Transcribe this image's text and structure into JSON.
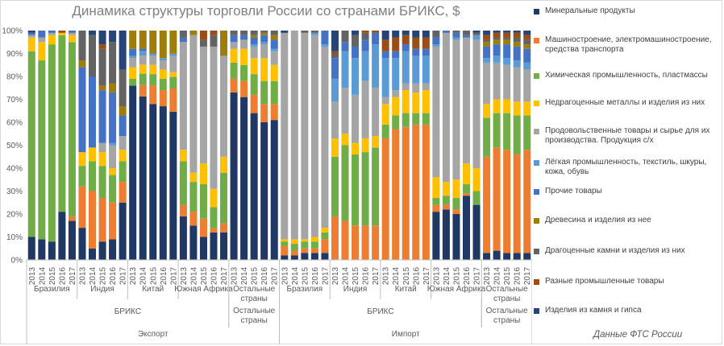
{
  "chart_data": {
    "type": "bar",
    "title": "Динамика структуры торговли России со странами БРИКС, $",
    "source": "Данные ФТС России",
    "stacked": true,
    "percent": true,
    "ylim": [
      0,
      100
    ],
    "yticks": [
      "0%",
      "10%",
      "20%",
      "30%",
      "40%",
      "50%",
      "60%",
      "70%",
      "80%",
      "90%",
      "100%"
    ],
    "grid": false,
    "legend_position": "right",
    "years": [
      "2013",
      "2014",
      "2015",
      "2016",
      "2017"
    ],
    "axis_levels": {
      "top_level": [
        "Экспорт",
        "Импорт"
      ],
      "mid_level": [
        "БРИКС",
        "Остальные страны",
        "БРИКС",
        "Остальные страны"
      ],
      "country_level": [
        "Бразилия",
        "Индия",
        "Китай",
        "Южная Африка",
        "Остальные страны",
        "Бразилия",
        "Индия",
        "Китай",
        "Южная Африка",
        "Остальные страны"
      ]
    },
    "series": [
      {
        "name": "Минеральные продукты",
        "color": "#203864"
      },
      {
        "name": "Машиностроение, электромашиностроение, средства транспорта",
        "color": "#ed7d31"
      },
      {
        "name": "Химическая промышленность, пластмассы",
        "color": "#70ad47"
      },
      {
        "name": "Недрагоценные металлы и изделия из них",
        "color": "#ffc000"
      },
      {
        "name": "Продовольственные товары и сырье для их производства. Продукция с/х",
        "color": "#a5a5a5"
      },
      {
        "name": "Лёгкая промышленность, текстиль, шкуры, кожа, обувь",
        "color": "#5b9bd5"
      },
      {
        "name": "Прочие товары",
        "color": "#4472c4"
      },
      {
        "name": "Древесина и изделия из нее",
        "color": "#9e7d0b"
      },
      {
        "name": "Драгоценные камни и изделия из них",
        "color": "#636363"
      },
      {
        "name": "Разные промышленные товары",
        "color": "#9c4d15"
      },
      {
        "name": "Изделия из камня и гипса",
        "color": "#264478"
      }
    ],
    "groups": [
      {
        "flow": "Экспорт",
        "country": "Бразилия",
        "bars": [
          [
            10,
            0,
            81,
            6,
            1,
            0,
            1,
            0,
            0,
            0,
            1
          ],
          [
            9,
            0,
            78,
            8,
            2,
            0,
            3,
            0,
            0,
            0,
            0
          ],
          [
            8,
            0,
            86,
            4,
            1,
            0,
            1,
            0,
            0,
            0,
            0
          ],
          [
            21,
            0,
            77,
            1,
            0,
            0,
            0,
            0,
            0,
            1,
            0
          ],
          [
            17,
            2,
            76,
            3,
            1,
            0,
            1,
            0,
            0,
            0,
            0
          ]
        ]
      },
      {
        "flow": "Экспорт",
        "country": "Индия",
        "bars": [
          [
            14,
            18,
            9,
            6,
            0,
            0,
            37,
            3,
            13,
            0,
            0
          ],
          [
            5,
            25,
            13,
            6,
            0,
            0,
            31,
            0,
            18,
            0,
            2
          ],
          [
            8,
            19,
            14,
            6,
            4,
            0,
            23,
            2,
            16,
            2,
            6
          ],
          [
            9,
            16,
            12,
            3,
            10,
            1,
            22,
            4,
            18,
            0,
            5
          ],
          [
            25,
            9,
            9,
            5,
            6,
            0,
            9,
            4,
            16,
            0,
            17
          ]
        ]
      },
      {
        "flow": "Экспорт",
        "country": "Китай",
        "bars": [
          [
            76,
            0,
            3,
            5,
            4,
            1,
            3,
            8,
            0,
            0,
            0
          ],
          [
            72,
            5,
            5,
            4,
            4,
            2,
            1,
            8,
            0,
            0,
            0
          ],
          [
            68,
            8,
            5,
            4,
            4,
            1,
            0,
            10,
            0,
            0,
            0
          ],
          [
            67,
            7,
            5,
            4,
            4,
            1,
            0,
            12,
            0,
            0,
            0
          ],
          [
            64,
            10,
            5,
            2,
            7,
            1,
            0,
            10,
            0,
            0,
            0
          ]
        ]
      },
      {
        "flow": "Экспорт",
        "country": "Южная Африка",
        "bars": [
          [
            19,
            5,
            19,
            5,
            47,
            0,
            2,
            0,
            3,
            0,
            0
          ],
          [
            15,
            6,
            13,
            4,
            60,
            0,
            0,
            2,
            0,
            0,
            0
          ],
          [
            10,
            8,
            15,
            9,
            51,
            0,
            0,
            0,
            3,
            4,
            0
          ],
          [
            12,
            2,
            9,
            8,
            62,
            0,
            0,
            0,
            5,
            2,
            0
          ],
          [
            12,
            4,
            22,
            7,
            44,
            0,
            0,
            11,
            0,
            0,
            0
          ]
        ]
      },
      {
        "flow": "Экспорт",
        "country": "Остальные страны",
        "bars": [
          [
            73,
            6,
            7,
            6,
            3,
            0,
            3,
            0,
            2,
            0,
            0
          ],
          [
            71,
            7,
            7,
            7,
            4,
            0,
            2,
            0,
            2,
            0,
            0
          ],
          [
            64,
            8,
            9,
            7,
            5,
            1,
            3,
            1,
            2,
            0,
            0
          ],
          [
            60,
            8,
            10,
            10,
            6,
            1,
            3,
            1,
            1,
            0,
            0
          ],
          [
            61,
            7,
            10,
            7,
            6,
            1,
            4,
            2,
            2,
            0,
            0
          ]
        ]
      },
      {
        "flow": "Импорт",
        "country": "Бразилия",
        "bars": [
          [
            2,
            4,
            2,
            1,
            90,
            0,
            0,
            0,
            0,
            0,
            1
          ],
          [
            2,
            2,
            3,
            2,
            91,
            0,
            0,
            0,
            0,
            0,
            0
          ],
          [
            3,
            2,
            3,
            1,
            90,
            0,
            0,
            0,
            1,
            0,
            0
          ],
          [
            3,
            2,
            3,
            2,
            88,
            1,
            0,
            0,
            1,
            0,
            0
          ],
          [
            3,
            6,
            3,
            2,
            79,
            1,
            6,
            0,
            0,
            0,
            0
          ]
        ]
      },
      {
        "flow": "Импорт",
        "country": "Индия",
        "bars": [
          [
            0,
            19,
            26,
            8,
            16,
            10,
            9,
            0,
            2,
            1,
            9
          ],
          [
            0,
            17,
            33,
            5,
            20,
            16,
            4,
            0,
            5,
            0,
            0
          ],
          [
            0,
            15,
            31,
            5,
            21,
            16,
            5,
            0,
            5,
            0,
            2
          ],
          [
            0,
            15,
            32,
            6,
            25,
            13,
            5,
            0,
            3,
            1,
            0
          ],
          [
            0,
            15,
            34,
            5,
            21,
            19,
            5,
            0,
            0,
            1,
            0
          ]
        ]
      },
      {
        "flow": "Импорт",
        "country": "Китай",
        "bars": [
          [
            0,
            53,
            6,
            9,
            3,
            17,
            3,
            0,
            0,
            5,
            4
          ],
          [
            0,
            57,
            6,
            8,
            3,
            14,
            3,
            0,
            0,
            6,
            3
          ],
          [
            0,
            58,
            6,
            10,
            3,
            14,
            3,
            0,
            0,
            4,
            2
          ],
          [
            0,
            59,
            5,
            9,
            4,
            12,
            3,
            0,
            0,
            5,
            3
          ],
          [
            0,
            59,
            5,
            10,
            3,
            12,
            3,
            0,
            0,
            5,
            3
          ]
        ]
      },
      {
        "flow": "Импорт",
        "country": "Южная Африка",
        "bars": [
          [
            21,
            3,
            3,
            9,
            57,
            1,
            3,
            0,
            3,
            0,
            0
          ],
          [
            22,
            2,
            4,
            6,
            65,
            0,
            1,
            0,
            0,
            0,
            0
          ],
          [
            20,
            2,
            5,
            8,
            61,
            1,
            2,
            0,
            1,
            0,
            0
          ],
          [
            28,
            1,
            4,
            9,
            55,
            0,
            1,
            0,
            2,
            0,
            0
          ],
          [
            24,
            0,
            6,
            10,
            56,
            2,
            0,
            0,
            1,
            0,
            1
          ]
        ]
      },
      {
        "flow": "Импорт",
        "country": "Остальные страны",
        "bars": [
          [
            3,
            42,
            17,
            6,
            18,
            2,
            5,
            2,
            1,
            2,
            2
          ],
          [
            4,
            45,
            15,
            6,
            16,
            3,
            5,
            2,
            1,
            2,
            1
          ],
          [
            3,
            45,
            16,
            6,
            15,
            3,
            6,
            2,
            1,
            2,
            1
          ],
          [
            3,
            43,
            17,
            6,
            15,
            3,
            6,
            2,
            2,
            2,
            1
          ],
          [
            3,
            45,
            15,
            6,
            14,
            3,
            6,
            2,
            2,
            2,
            2
          ]
        ]
      }
    ]
  }
}
